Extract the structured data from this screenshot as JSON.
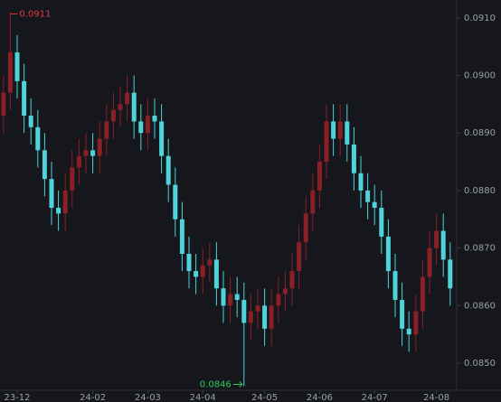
{
  "chart_data": {
    "type": "candlestick",
    "categories": [
      null,
      null,
      "23-12",
      null,
      null,
      null,
      null,
      null,
      null,
      null,
      null,
      null,
      null,
      "24-02",
      null,
      null,
      null,
      null,
      null,
      null,
      null,
      "24-03",
      null,
      null,
      null,
      null,
      null,
      null,
      null,
      "24-04",
      null,
      null,
      null,
      null,
      null,
      null,
      null,
      null,
      "24-05",
      null,
      null,
      null,
      null,
      null,
      null,
      null,
      "24-06",
      null,
      null,
      null,
      null,
      null,
      null,
      null,
      "24-07",
      null,
      null,
      null,
      null,
      null,
      null,
      null,
      null,
      "24-08",
      null,
      null
    ],
    "open": [
      0.0893,
      0.0897,
      0.0904,
      0.0899,
      0.0893,
      0.0891,
      0.0887,
      0.0882,
      0.0877,
      0.0876,
      0.088,
      0.0884,
      0.0886,
      0.0887,
      0.0886,
      0.0889,
      0.0892,
      0.0894,
      0.0895,
      0.0897,
      0.0892,
      0.089,
      0.0893,
      0.0892,
      0.0886,
      0.0881,
      0.0875,
      0.0869,
      0.0866,
      0.0865,
      0.0867,
      0.0868,
      0.0863,
      0.086,
      0.0862,
      0.0861,
      0.0857,
      0.0859,
      0.086,
      0.0856,
      0.086,
      0.0862,
      0.0863,
      0.0866,
      0.0871,
      0.0876,
      0.088,
      0.0885,
      0.0892,
      0.0889,
      0.0892,
      0.0888,
      0.0883,
      0.088,
      0.0878,
      0.0877,
      0.0872,
      0.0866,
      0.0861,
      0.0856,
      0.0855,
      0.0859,
      0.0865,
      0.087,
      0.0873,
      0.0868
    ],
    "high": [
      0.09,
      0.0911,
      0.0907,
      0.0902,
      0.0896,
      0.0894,
      0.089,
      0.0885,
      0.088,
      0.0883,
      0.0887,
      0.0889,
      0.089,
      0.089,
      0.0892,
      0.0895,
      0.0897,
      0.0898,
      0.09,
      0.09,
      0.0895,
      0.0896,
      0.0896,
      0.0895,
      0.0889,
      0.0884,
      0.0878,
      0.0872,
      0.0869,
      0.087,
      0.0871,
      0.0871,
      0.0866,
      0.0865,
      0.0865,
      0.0864,
      0.0862,
      0.0863,
      0.0863,
      0.0863,
      0.0865,
      0.0866,
      0.0869,
      0.0874,
      0.0879,
      0.0883,
      0.0888,
      0.0895,
      0.0895,
      0.0895,
      0.0895,
      0.0891,
      0.0886,
      0.0883,
      0.0881,
      0.088,
      0.0875,
      0.0869,
      0.0864,
      0.0859,
      0.0862,
      0.0868,
      0.0873,
      0.0876,
      0.0876,
      0.0871
    ],
    "low": [
      0.089,
      0.0894,
      0.0896,
      0.089,
      0.0888,
      0.0884,
      0.0879,
      0.0874,
      0.0873,
      0.0873,
      0.0877,
      0.0881,
      0.0883,
      0.0883,
      0.0883,
      0.0886,
      0.0889,
      0.0891,
      0.0892,
      0.0889,
      0.0887,
      0.0887,
      0.0889,
      0.0883,
      0.0878,
      0.0872,
      0.0866,
      0.0863,
      0.0862,
      0.0862,
      0.0864,
      0.086,
      0.0857,
      0.0857,
      0.0858,
      0.0846,
      0.0854,
      0.0856,
      0.0853,
      0.0853,
      0.0857,
      0.0859,
      0.086,
      0.0863,
      0.0868,
      0.0873,
      0.0877,
      0.0882,
      0.0886,
      0.0886,
      0.0885,
      0.088,
      0.0877,
      0.0875,
      0.0874,
      0.0869,
      0.0863,
      0.0858,
      0.0853,
      0.0852,
      0.0852,
      0.0856,
      0.0862,
      0.0867,
      0.0865,
      0.086
    ],
    "close": [
      0.0897,
      0.0904,
      0.0899,
      0.0893,
      0.0891,
      0.0887,
      0.0882,
      0.0877,
      0.0876,
      0.088,
      0.0884,
      0.0886,
      0.0887,
      0.0886,
      0.0889,
      0.0892,
      0.0894,
      0.0895,
      0.0897,
      0.0892,
      0.089,
      0.0893,
      0.0892,
      0.0886,
      0.0881,
      0.0875,
      0.0869,
      0.0866,
      0.0865,
      0.0867,
      0.0868,
      0.0863,
      0.086,
      0.0862,
      0.0861,
      0.0857,
      0.0859,
      0.086,
      0.0856,
      0.086,
      0.0862,
      0.0863,
      0.0866,
      0.0871,
      0.0876,
      0.088,
      0.0885,
      0.0892,
      0.0889,
      0.0892,
      0.0888,
      0.0883,
      0.088,
      0.0878,
      0.0877,
      0.0872,
      0.0866,
      0.0861,
      0.0856,
      0.0855,
      0.0859,
      0.0865,
      0.087,
      0.0873,
      0.0868,
      0.0863
    ],
    "up_color": "#8b1f26",
    "down_color": "#4fd2da",
    "ylim": [
      0.08453,
      0.09131
    ],
    "yticks": [
      {
        "value": 0.085,
        "label": "0.0850"
      },
      {
        "value": 0.086,
        "label": "0.0860"
      },
      {
        "value": 0.087,
        "label": "0.0870"
      },
      {
        "value": 0.088,
        "label": "0.0880"
      },
      {
        "value": 0.089,
        "label": "0.0890"
      },
      {
        "value": 0.09,
        "label": "0.0900"
      },
      {
        "value": 0.091,
        "label": "0.0910"
      }
    ],
    "max_label": "0.0911",
    "max_color": "#e0383e",
    "min_label": "0.0846",
    "min_color": "#2ecc55"
  }
}
